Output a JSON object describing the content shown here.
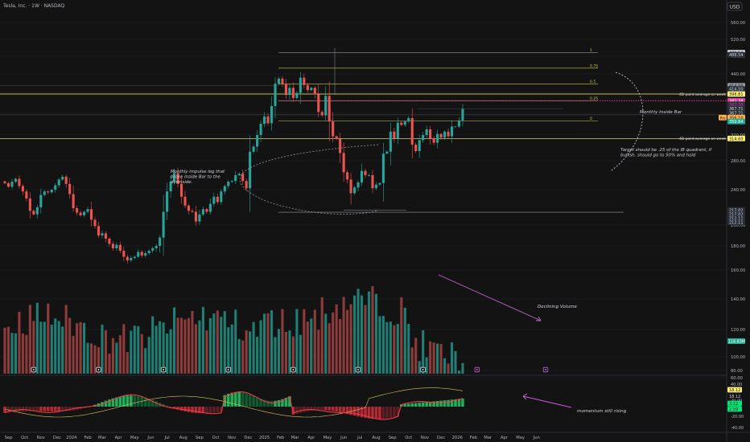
{
  "header": {
    "symbol_line": "Tesla, Inc. · 1W · NASDAQ",
    "currency": "USD"
  },
  "chart_data": {
    "type": "candlestick",
    "ylim": [
      60,
      575
    ],
    "price_ticks": [
      560,
      520,
      480,
      440,
      400,
      360,
      320,
      280,
      240,
      200,
      180,
      160,
      140,
      120,
      100,
      80,
      60
    ],
    "price_tick_labels": [
      "560.00",
      "520.00",
      "480.00",
      "440.00",
      "400.00",
      "360.00",
      "320.00",
      "280.00",
      "240.00",
      "200.00",
      "180.00",
      "160.00",
      "140.00",
      "120.00",
      "100.00",
      "80.00",
      "60.00"
    ],
    "time_axis": [
      {
        "label": "Sep",
        "w": 1
      },
      {
        "label": "Oct",
        "w": 5.5
      },
      {
        "label": "Nov",
        "w": 10
      },
      {
        "label": "Dec",
        "w": 14.5
      },
      {
        "label": "2024",
        "w": 18.5
      },
      {
        "label": "Feb",
        "w": 23
      },
      {
        "label": "Mar",
        "w": 27
      },
      {
        "label": "Apr",
        "w": 31.5
      },
      {
        "label": "May",
        "w": 36
      },
      {
        "label": "Jun",
        "w": 40.5
      },
      {
        "label": "Jul",
        "w": 45
      },
      {
        "label": "Aug",
        "w": 49.5
      },
      {
        "label": "Sep",
        "w": 54
      },
      {
        "label": "Oct",
        "w": 58.5
      },
      {
        "label": "Nov",
        "w": 63
      },
      {
        "label": "Dec",
        "w": 67.5
      },
      {
        "label": "2025",
        "w": 72
      },
      {
        "label": "Feb",
        "w": 76.5
      },
      {
        "label": "Mar",
        "w": 80.5
      },
      {
        "label": "Apr",
        "w": 85
      },
      {
        "label": "May",
        "w": 89.5
      },
      {
        "label": "Jun",
        "w": 94
      },
      {
        "label": "Jul",
        "w": 98.5
      },
      {
        "label": "Aug",
        "w": 103
      },
      {
        "label": "Sep",
        "w": 107.5
      },
      {
        "label": "Oct",
        "w": 112
      },
      {
        "label": "Nov",
        "w": 116.5
      },
      {
        "label": "Dec",
        "w": 121
      },
      {
        "label": "2026",
        "w": 125.5
      },
      {
        "label": "Feb",
        "w": 130
      },
      {
        "label": "Mar",
        "w": 134
      },
      {
        "label": "Apr",
        "w": 138.5
      },
      {
        "label": "May",
        "w": 143
      },
      {
        "label": "Jun",
        "w": 147.5
      }
    ],
    "closes": [
      249,
      244,
      251,
      255,
      245,
      238,
      230,
      216,
      212,
      220,
      234,
      238,
      237,
      240,
      246,
      254,
      258,
      248,
      235,
      219,
      214,
      211,
      215,
      218,
      206,
      199,
      190,
      192,
      187,
      182,
      178,
      181,
      176,
      171,
      168,
      170,
      171,
      175,
      172,
      174,
      176,
      178,
      180,
      188,
      215,
      238,
      251,
      263,
      248,
      232,
      222,
      216,
      215,
      204,
      212,
      218,
      215,
      224,
      232,
      226,
      238,
      245,
      251,
      252,
      260,
      262,
      252,
      242,
      294,
      302,
      320,
      340,
      353,
      341,
      373,
      419,
      430,
      419,
      395,
      410,
      389,
      399,
      432,
      416,
      405,
      410,
      396,
      361,
      355,
      393,
      344,
      318,
      314,
      292,
      264,
      254,
      236,
      243,
      250,
      266,
      260,
      260,
      242,
      247,
      249,
      291,
      294,
      326,
      315,
      342,
      338,
      344,
      350,
      305,
      295,
      312,
      320,
      330,
      315,
      308,
      322,
      316,
      326,
      318,
      335,
      335,
      346,
      367
    ],
    "price_labels": [
      {
        "v": 488.54,
        "text": "488.54",
        "fg": "#131313",
        "bg": "#d1d4dc"
      },
      {
        "v": 483.5,
        "text": "488.54",
        "fg": "#d1d4dc",
        "bg": "#2a2e39"
      },
      {
        "v": 414.5,
        "text": "414.50",
        "fg": "#131313",
        "bg": "#9598a1"
      },
      {
        "v": 407.5,
        "text": "414.50",
        "fg": "#d1d4dc",
        "bg": "#2a2e39"
      },
      {
        "v": 396.81,
        "text": "396.81",
        "fg": "#131313",
        "bg": "#fff176"
      },
      {
        "v": 383.38,
        "text": "383.38",
        "fg": "#ffffff",
        "bg": "#d83b9d"
      },
      {
        "v": 376.3,
        "text": "383.38",
        "fg": "#d83b9d",
        "bg": "#2a2e39"
      },
      {
        "v": 367.71,
        "text": "367.71",
        "fg": "#d1d4dc",
        "bg": "#2a2e39"
      },
      {
        "v": 359.5,
        "text": "367.71",
        "fg": "#d1d4dc",
        "bg": "#2a2e39"
      },
      {
        "v": 351,
        "text": "356.10",
        "fg": "#131313",
        "bg": "#ffb14a"
      },
      {
        "v": 344,
        "text": "350.84",
        "fg": "#ffffff",
        "bg": "#22ab94"
      },
      {
        "v": 314.6,
        "text": "314.60",
        "fg": "#131313",
        "bg": "#fff176"
      },
      {
        "v": 217.02,
        "text": "217.02",
        "fg": "#d1d4dc",
        "bg": "#2a2e39"
      },
      {
        "v": 212.2,
        "text": "217.02",
        "fg": "#d1d4dc",
        "bg": "#2a2e39"
      },
      {
        "v": 207.6,
        "text": "212.11",
        "fg": "#d1d4dc",
        "bg": "#2a2e39"
      },
      {
        "v": 203.0,
        "text": "212.11",
        "fg": "#d1d4dc",
        "bg": "#2a2e39"
      }
    ],
    "price_pill": "Pre",
    "volume_label": "116.83M",
    "volume_color": "#22ab94",
    "momentum_ticks": [
      {
        "text": "40.00",
        "y": 478
      },
      {
        "text": "20.00",
        "y": 498
      },
      {
        "text": "-20.00",
        "y": 518
      },
      {
        "text": "-40.00",
        "y": 532
      }
    ],
    "momentum_labels": [
      {
        "text": "18.12",
        "fg": "#131313",
        "bg": "#fff176",
        "y": 485
      },
      {
        "text": "18.12",
        "fg": "#d1d4dc",
        "bg": "#131313",
        "y": 493
      },
      {
        "text": "3.12",
        "fg": "#131313",
        "bg": "#00e676",
        "y": 502
      },
      {
        "text": "2.59",
        "fg": "#131313",
        "bg": "#00e676",
        "y": 509
      }
    ],
    "fib_levels": [
      {
        "label": "1",
        "v": 488.5
      },
      {
        "label": "0.75",
        "v": 453
      },
      {
        "label": "0.5",
        "v": 418
      },
      {
        "label": "0.25",
        "v": 383
      },
      {
        "label": "0",
        "v": 345
      }
    ],
    "averages": [
      {
        "label": "4D point average on week",
        "v": 396.8
      },
      {
        "label": "4D point average on week",
        "v": 314.6
      }
    ],
    "annotations": {
      "monthly_inside_bar": "Monthly Inside Bar",
      "target": "Target should be .25 of the IB quadrant, if bullish, should go to 50% and hold",
      "impulse": "Monthly impulse leg that broke Inside Bar to the downside.",
      "declining_volume": "Declining Volume",
      "momentum": "momentum still rising"
    },
    "colors": {
      "up": "#26a69a",
      "down": "#ef5350",
      "fib": "#c9c94a",
      "avg": "#fff176",
      "magenta": "#d83b9d",
      "arrow": "#c85fd6"
    }
  }
}
